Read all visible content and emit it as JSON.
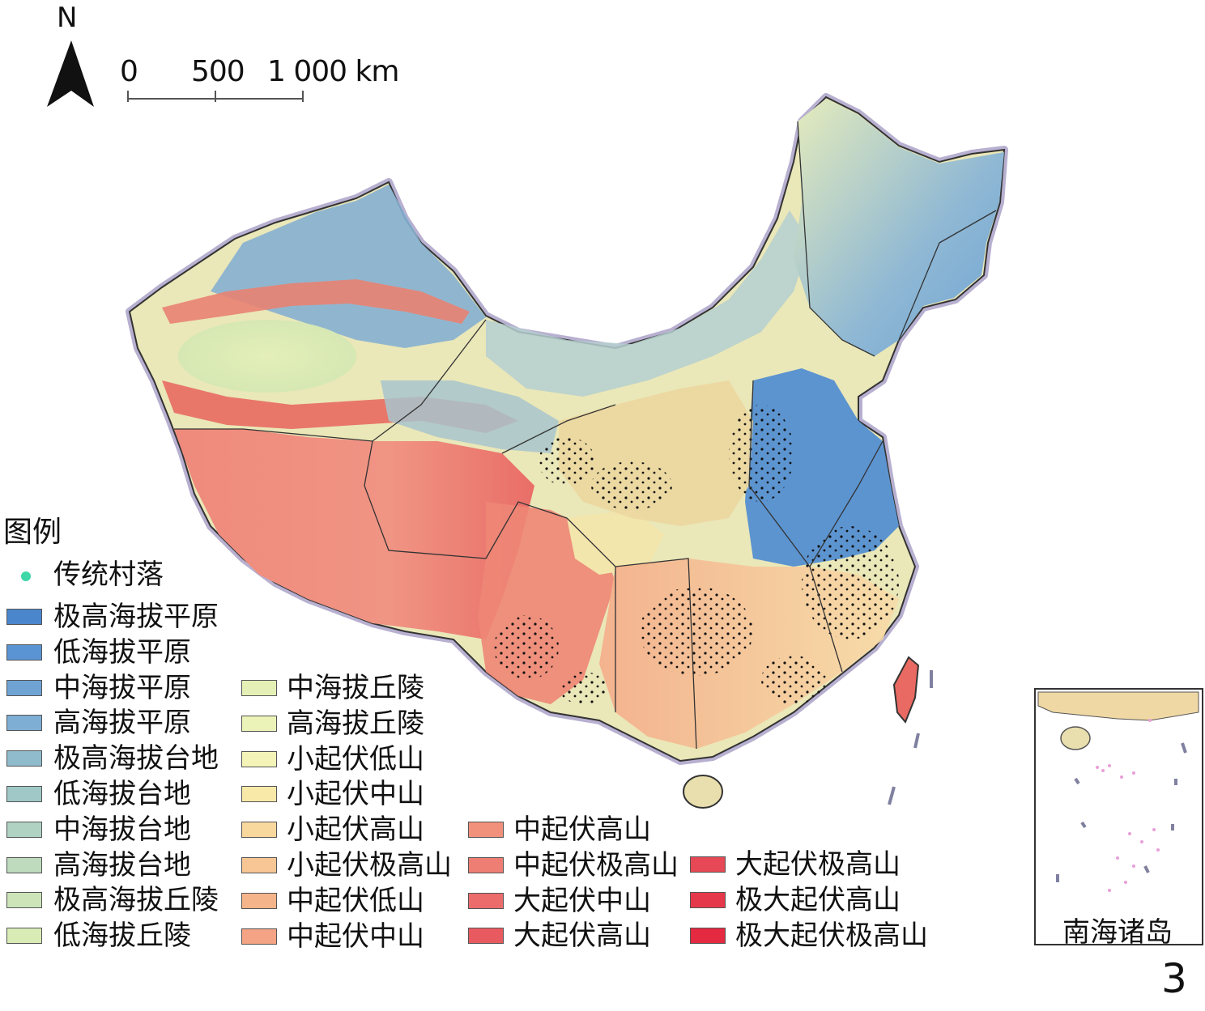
{
  "map": {
    "north_label": "N",
    "scale_labels": [
      "0",
      "500",
      "1 000 km"
    ],
    "inset_label": "南海诸岛",
    "page_number": "3"
  },
  "legend": {
    "title": "图例",
    "village": {
      "label": "传统村落",
      "color": "#3fd6a8"
    },
    "col1": [
      {
        "label": "极高海拔平原",
        "color": "#4a86cc"
      },
      {
        "label": "低海拔平原",
        "color": "#5b94d2"
      },
      {
        "label": "中海拔平原",
        "color": "#6fa3d4"
      },
      {
        "label": "高海拔平原",
        "color": "#7eaed3"
      },
      {
        "label": "极高海拔台地",
        "color": "#8fbbcc"
      },
      {
        "label": "低海拔台地",
        "color": "#a0c8c6"
      },
      {
        "label": "中海拔台地",
        "color": "#b0d2c2"
      },
      {
        "label": "高海拔台地",
        "color": "#bedbbd"
      },
      {
        "label": "极高海拔丘陵",
        "color": "#cce4b8"
      },
      {
        "label": "低海拔丘陵",
        "color": "#d9ecb6"
      }
    ],
    "col2": [
      {
        "label": "中海拔丘陵",
        "color": "#e4f0b6"
      },
      {
        "label": "高海拔丘陵",
        "color": "#ecf3b8"
      },
      {
        "label": "小起伏低山",
        "color": "#f5f4b8"
      },
      {
        "label": "小起伏中山",
        "color": "#f8e9a8"
      },
      {
        "label": "小起伏高山",
        "color": "#f8d89c"
      },
      {
        "label": "小起伏极高山",
        "color": "#f7c694"
      },
      {
        "label": "中起伏低山",
        "color": "#f6b48a"
      },
      {
        "label": "中起伏中山",
        "color": "#f4a384"
      }
    ],
    "col3": [
      {
        "label": "中起伏高山",
        "color": "#f1917c"
      },
      {
        "label": "中起伏极高山",
        "color": "#ee7e74"
      },
      {
        "label": "大起伏中山",
        "color": "#ec6c6c"
      },
      {
        "label": "大起伏高山",
        "color": "#e95a60"
      }
    ],
    "col4": [
      {
        "label": "大起伏极高山",
        "color": "#e74856"
      },
      {
        "label": "极大起伏高山",
        "color": "#e6384b"
      },
      {
        "label": "极大起伏极高山",
        "color": "#e42a40"
      }
    ]
  }
}
